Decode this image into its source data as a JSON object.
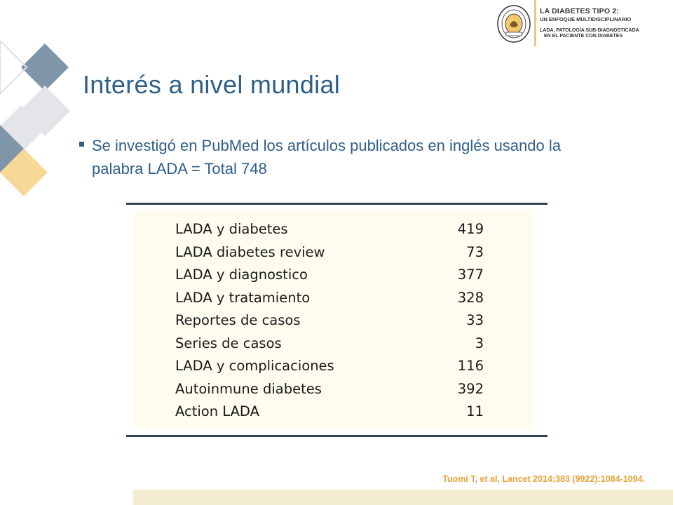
{
  "header": {
    "line1": "LA DIABETES TIPO 2:",
    "line2": "UN ENFOQUE MULTIDISCIPLINARIO",
    "line3": "LADA, PATOLOGÍA SUB-DIAGNOSTICADA",
    "line4": "EN EL PACIENTE CON DIABETES",
    "seal_icon": "academy-seal-icon"
  },
  "slide": {
    "title": "Interés a nivel mundial",
    "bullet": "Se investigó en PubMed los artículos publicados en inglés usando la palabra LADA = Total 748"
  },
  "table": {
    "rows": [
      {
        "label": "LADA y diabetes",
        "value": "419"
      },
      {
        "label": "LADA diabetes review",
        "value": "73"
      },
      {
        "label": "LADA y diagnostico",
        "value": "377"
      },
      {
        "label": "LADA y tratamiento",
        "value": "328"
      },
      {
        "label": "Reportes de casos",
        "value": "33"
      },
      {
        "label": "Series de casos",
        "value": "3"
      },
      {
        "label": "LADA y complicaciones",
        "value": "116"
      },
      {
        "label": "Autoinmune diabetes",
        "value": "392"
      },
      {
        "label": "Action LADA",
        "value": "11"
      }
    ]
  },
  "citation": "Tuomi T, et al, Lancet 2014;383 (9922):1084-1094.",
  "colors": {
    "title": "#2e5f8a",
    "diamond_slate": "#7f95a8",
    "diamond_gray": "#e3e5e8",
    "diamond_gold": "#f8d898",
    "citation": "#e5a339"
  }
}
